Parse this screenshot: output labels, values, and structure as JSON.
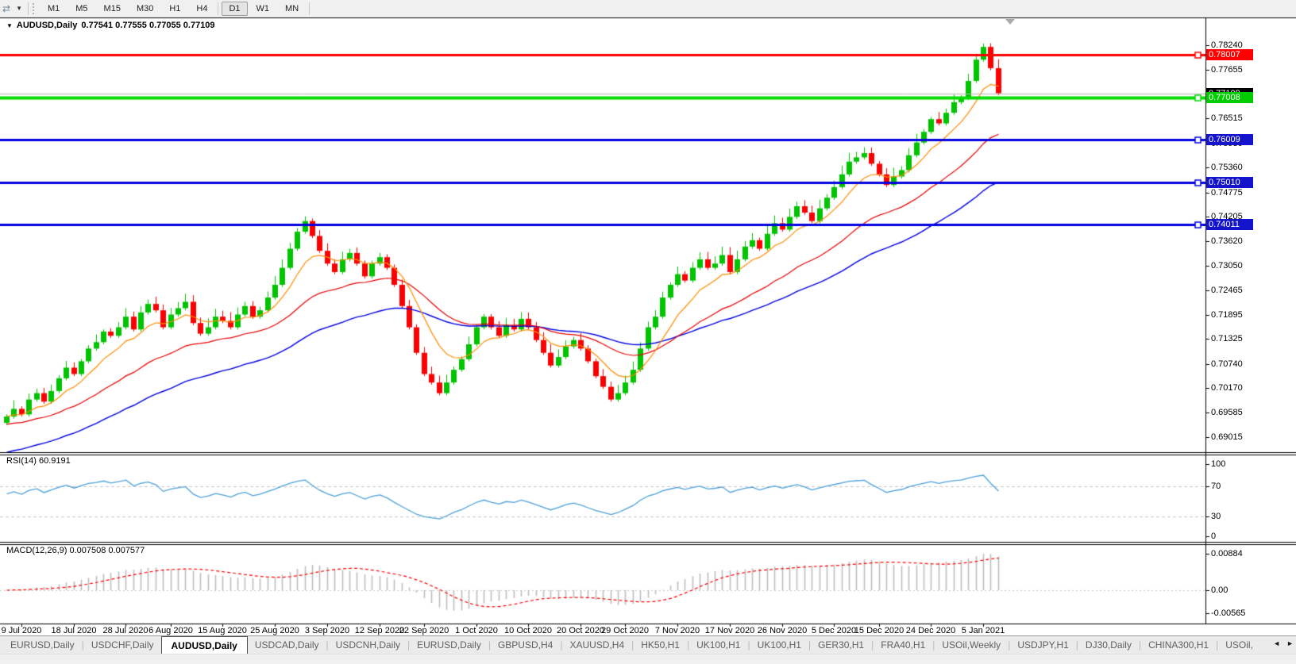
{
  "toolbar": {
    "cursor_icon": "chart-scroll-arrows-icon",
    "dropdown_icon": "caret-down-icon",
    "timeframes": [
      "M1",
      "M5",
      "M15",
      "M30",
      "H1",
      "H4",
      "D1",
      "W1",
      "MN"
    ],
    "active_timeframe": "D1"
  },
  "chart": {
    "title": {
      "dropdown_icon": "caret-down-icon",
      "symbol": "AUDUSD,Daily",
      "open": "0.77541",
      "high": "0.77555",
      "low": "0.77055",
      "close": "0.77109"
    },
    "price_axis_ticks": [
      "0.78240",
      "0.77655",
      "0.77085",
      "0.76515",
      "0.75930",
      "0.75360",
      "0.74775",
      "0.74205",
      "0.73620",
      "0.73050",
      "0.72465",
      "0.71895",
      "0.71325",
      "0.70740",
      "0.70170",
      "0.69585",
      "0.69015"
    ],
    "price_tags": [
      {
        "label": "0.78007",
        "value": 0.78007,
        "color": "#ff0000"
      },
      {
        "label": "0.77109",
        "value": 0.77109,
        "color": "#000000"
      },
      {
        "label": "0.77008",
        "value": 0.77008,
        "color": "#00cc00"
      },
      {
        "label": "0.76009",
        "value": 0.76009,
        "color": "#1414cc"
      },
      {
        "label": "0.75010",
        "value": 0.7501,
        "color": "#1414cc"
      },
      {
        "label": "0.74011",
        "value": 0.74011,
        "color": "#1414cc"
      }
    ],
    "hlines": [
      {
        "value": 0.78007,
        "color": "#ff0000",
        "width": 3
      },
      {
        "value": 0.77008,
        "color": "#00dd00",
        "width": 4
      },
      {
        "value": 0.76009,
        "color": "#0000e0",
        "width": 3
      },
      {
        "value": 0.7501,
        "color": "#0000e0",
        "width": 3
      },
      {
        "value": 0.74011,
        "color": "#0000e0",
        "width": 3
      }
    ],
    "current_price": 0.77109,
    "dates": [
      "9 Jul 2020",
      "18 Jul 2020",
      "28 Jul 2020",
      "6 Aug 2020",
      "15 Aug 2020",
      "25 Aug 2020",
      "3 Sep 2020",
      "12 Sep 2020",
      "22 Sep 2020",
      "1 Oct 2020",
      "10 Oct 2020",
      "20 Oct 2020",
      "29 Oct 2020",
      "7 Nov 2020",
      "17 Nov 2020",
      "26 Nov 2020",
      "5 Dec 2020",
      "15 Dec 2020",
      "24 Dec 2020",
      "5 Jan 2021"
    ],
    "first_open": 0.6935,
    "closes": [
      0.695,
      0.6968,
      0.6955,
      0.699,
      0.7005,
      0.6985,
      0.701,
      0.704,
      0.7065,
      0.705,
      0.708,
      0.711,
      0.7125,
      0.715,
      0.714,
      0.716,
      0.7185,
      0.7155,
      0.7195,
      0.7215,
      0.72,
      0.716,
      0.719,
      0.7205,
      0.722,
      0.717,
      0.7145,
      0.716,
      0.7185,
      0.7175,
      0.716,
      0.719,
      0.721,
      0.7185,
      0.72,
      0.723,
      0.726,
      0.73,
      0.7345,
      0.7385,
      0.741,
      0.7375,
      0.734,
      0.731,
      0.729,
      0.732,
      0.7335,
      0.731,
      0.728,
      0.731,
      0.7325,
      0.73,
      0.726,
      0.721,
      0.716,
      0.71,
      0.705,
      0.703,
      0.7005,
      0.703,
      0.706,
      0.7085,
      0.712,
      0.716,
      0.7185,
      0.716,
      0.714,
      0.7165,
      0.7155,
      0.718,
      0.716,
      0.713,
      0.71,
      0.707,
      0.709,
      0.7115,
      0.713,
      0.711,
      0.708,
      0.7045,
      0.702,
      0.699,
      0.7005,
      0.703,
      0.706,
      0.711,
      0.716,
      0.7185,
      0.723,
      0.726,
      0.7285,
      0.727,
      0.73,
      0.732,
      0.73,
      0.731,
      0.733,
      0.729,
      0.732,
      0.735,
      0.7365,
      0.7345,
      0.738,
      0.7405,
      0.739,
      0.742,
      0.7445,
      0.743,
      0.741,
      0.744,
      0.7465,
      0.749,
      0.752,
      0.755,
      0.756,
      0.757,
      0.7545,
      0.752,
      0.7495,
      0.7515,
      0.753,
      0.7565,
      0.7595,
      0.762,
      0.765,
      0.764,
      0.7665,
      0.769,
      0.77,
      0.774,
      0.779,
      0.782,
      0.777,
      0.7711
    ]
  },
  "rsi": {
    "label": "RSI(14) 60.9191",
    "period": 14,
    "value": "60.9191",
    "axis_ticks": [
      {
        "label": "100",
        "value": 100
      },
      {
        "label": "70",
        "value": 70
      },
      {
        "label": "30",
        "value": 30
      },
      {
        "label": "0",
        "value": 0
      }
    ],
    "levels": [
      70,
      30
    ]
  },
  "macd": {
    "label": "MACD(12,26,9) 0.007508 0.007577",
    "axis_ticks": [
      {
        "label": "0.00884",
        "value": 0.00884
      },
      {
        "label": "0.00",
        "value": 0
      },
      {
        "label": "-0.00565",
        "value": -0.00565
      }
    ],
    "max": 0.00884,
    "min": -0.00565
  },
  "tabs": {
    "items": [
      "EURUSD,Daily",
      "USDCHF,Daily",
      "AUDUSD,Daily",
      "USDCAD,Daily",
      "USDCNH,Daily",
      "EURUSD,Daily",
      "GBPUSD,H4",
      "XAUUSD,H4",
      "HK50,H1",
      "UK100,H1",
      "UK100,H1",
      "GER30,H1",
      "FRA40,H1",
      "USOil,Weekly",
      "USDJPY,H1",
      "DJ30,Daily",
      "CHINA300,H1",
      "USOil,"
    ],
    "active_index": 2,
    "left_arrow": "◄",
    "right_arrow": "►"
  },
  "colors": {
    "bull": "#00c400",
    "bear": "#fb0000",
    "ma_fast": "#ff8c00",
    "ma_mid": "#e80000",
    "ma_slow": "#0000e0",
    "rsi_line": "#4da1d8",
    "macd_hist": "#bdbdbd",
    "macd_signal": "#ff0000",
    "level_dash": "#c9c9c9",
    "current_price_line": "#b4b4b4",
    "border": "#000000"
  }
}
